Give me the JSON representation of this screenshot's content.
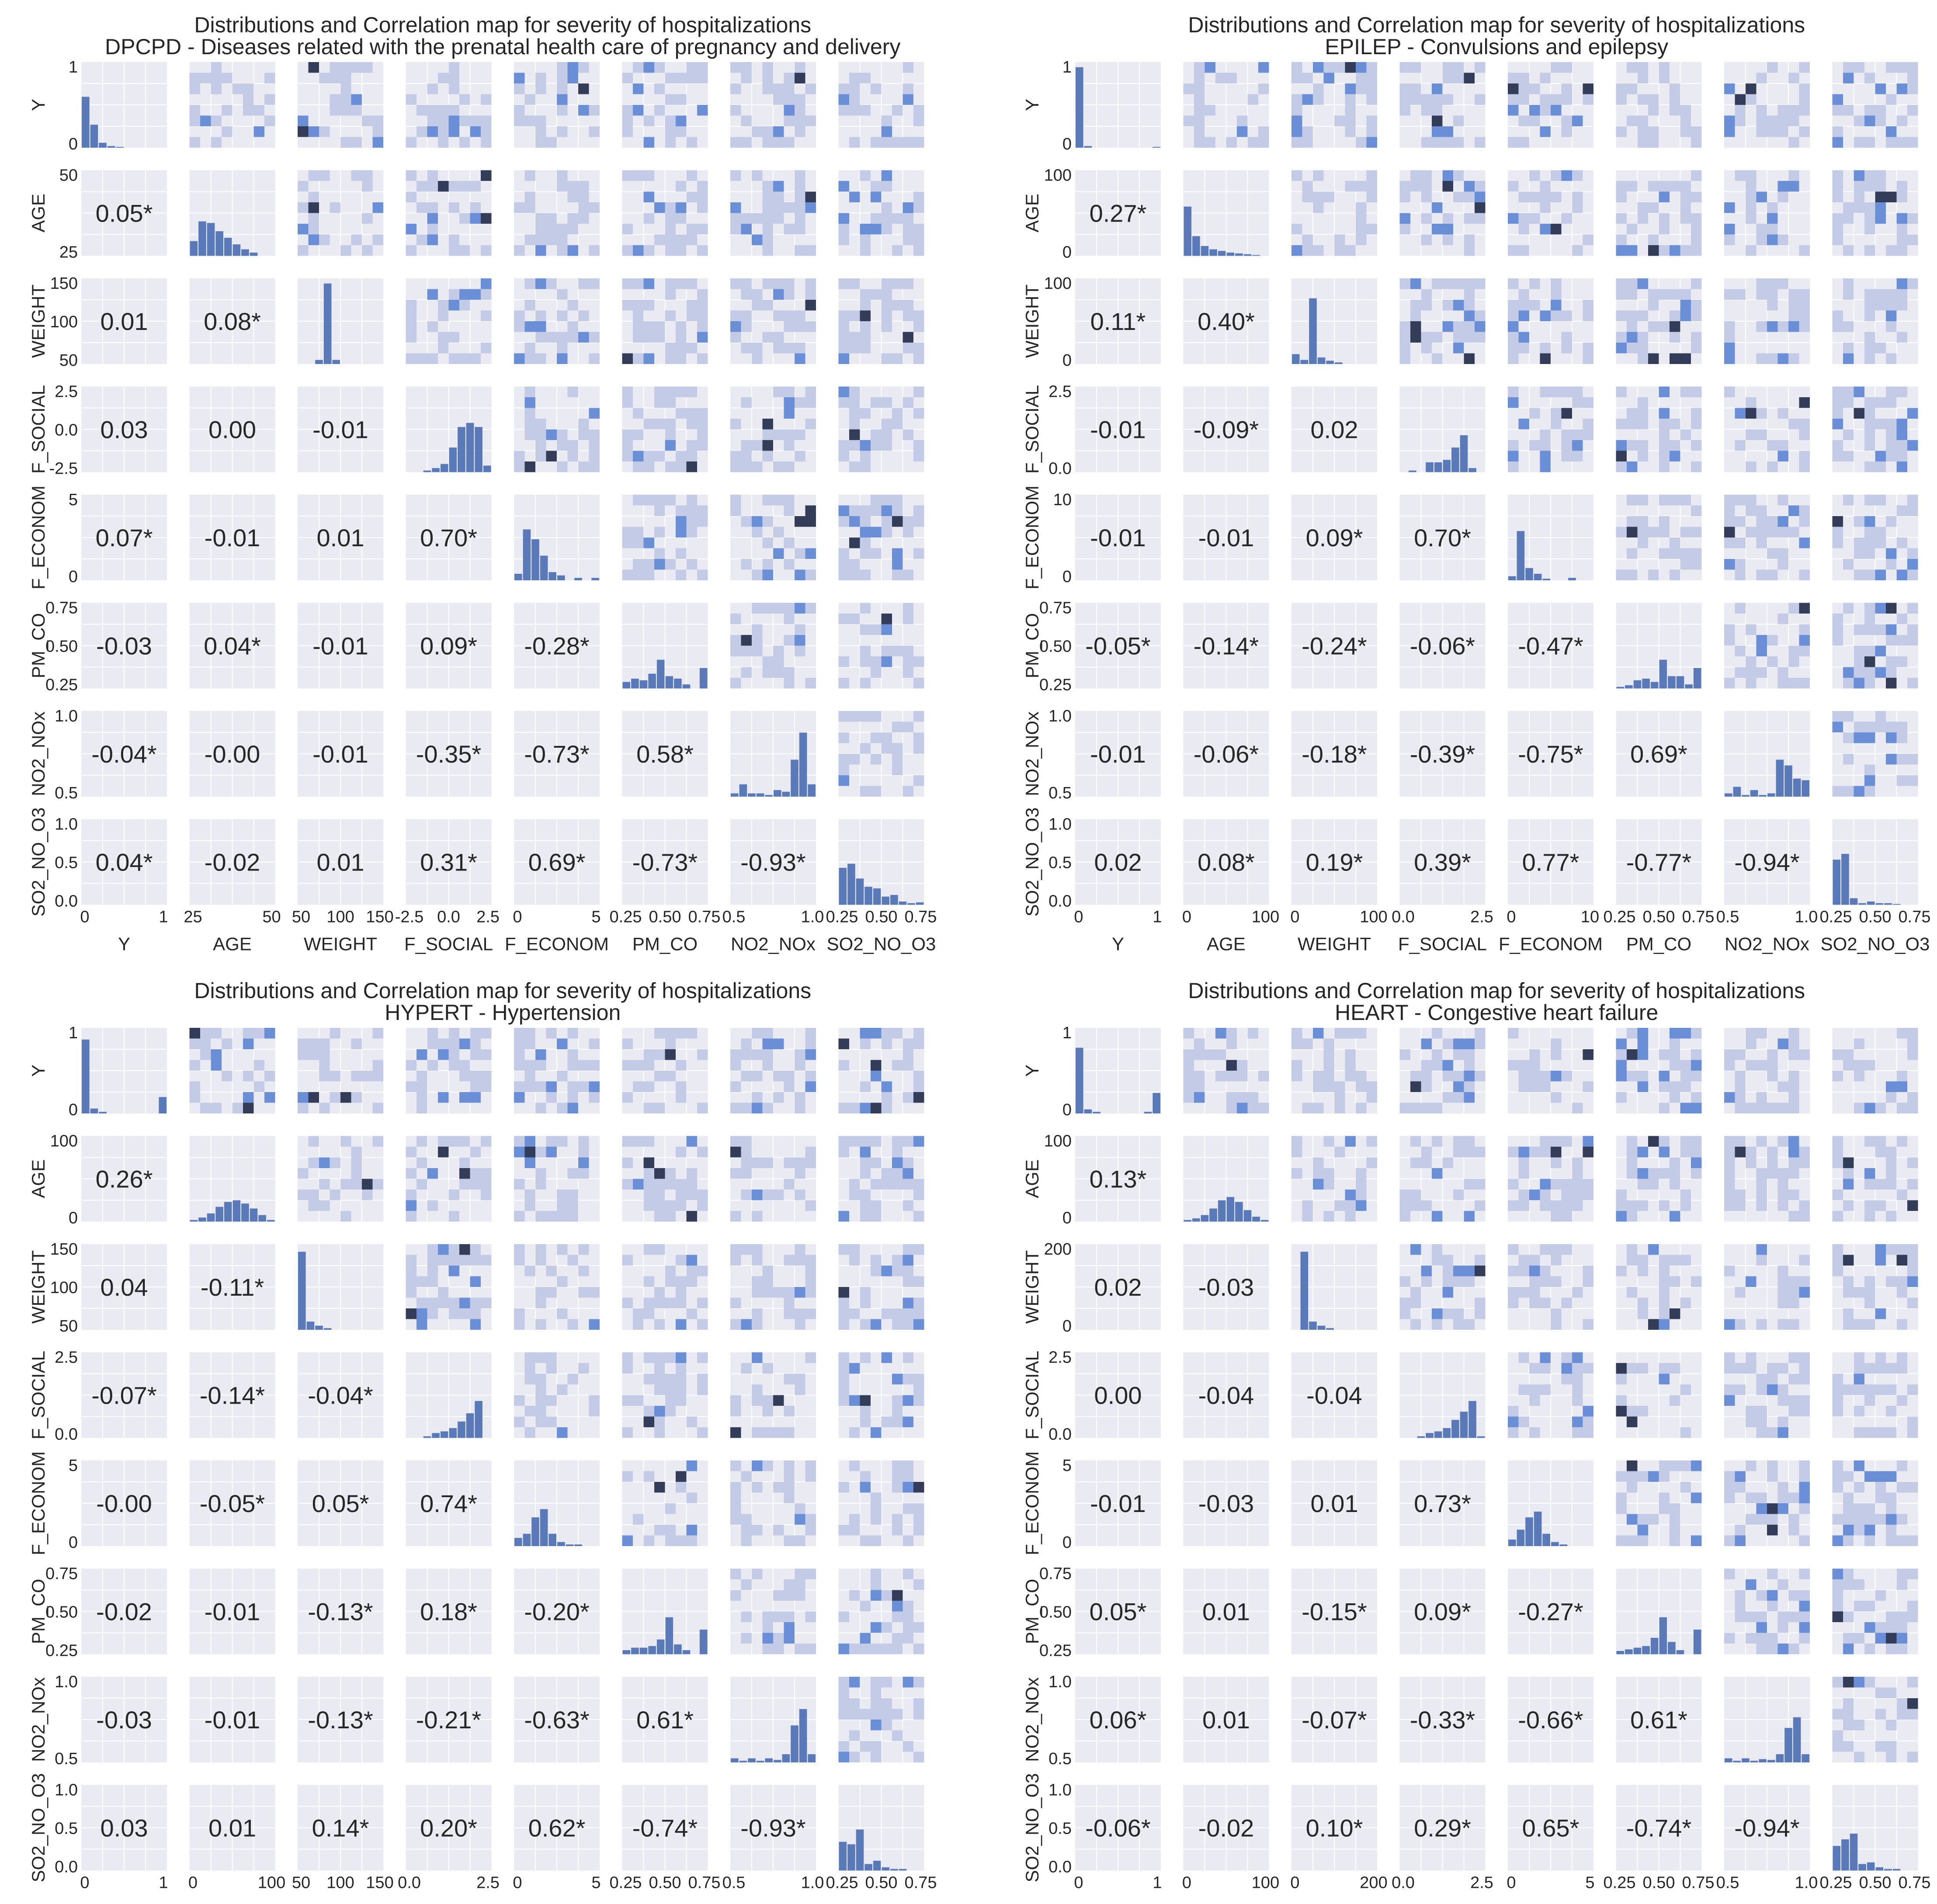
{
  "style": {
    "cell_bg": "#eaeaf2",
    "grid": "#ffffff",
    "text": "#262626",
    "hist_bar": "#5a79b8",
    "heat_light": "#c3cbe6",
    "heat_mid": "#6a8fd6",
    "heat_dark": "#333d5a"
  },
  "variables": [
    "Y",
    "AGE",
    "WEIGHT",
    "F_SOCIAL",
    "F_ECONOM",
    "PM_CO",
    "NO2_NOx",
    "SO2_NO_O3"
  ],
  "visible_x_labels": [
    "Y",
    "AGE",
    "WEIGHT",
    "F_SOCIAL",
    "F_ECONOM",
    "PM_CO",
    "NO2_NOx",
    "SO2_NO_O3"
  ],
  "chart_data": [
    {
      "type": "pairgrid",
      "title": "Distributions and Correlation map for severity of hospitalizations",
      "subtitle": "DPCPD - Diseases related with the prenatal health care of pregnancy and delivery",
      "correlations": [
        [
          "0.05*"
        ],
        [
          "0.01",
          "0.08*"
        ],
        [
          "0.03",
          "0.00",
          "-0.01"
        ],
        [
          "0.07*",
          "-0.01",
          "0.01",
          "0.70*"
        ],
        [
          "-0.03",
          "0.04*",
          "-0.01",
          "0.09*",
          "-0.28*"
        ],
        [
          "-0.04*",
          "-0.00",
          "-0.01",
          "-0.35*",
          "-0.73*",
          "0.58*"
        ],
        [
          "0.04*",
          "-0.02",
          "0.01",
          "0.31*",
          "0.69*",
          "-0.73*",
          "-0.93*"
        ]
      ],
      "y_ticks": [
        [
          "0",
          "1"
        ],
        [
          "25",
          "50"
        ],
        [
          "50",
          "100",
          "150"
        ],
        [
          "-2.5",
          "0.0",
          "2.5"
        ],
        [
          "0",
          "5"
        ],
        [
          "0.25",
          "0.50",
          "0.75"
        ],
        [
          "0.5",
          "1.0"
        ],
        [
          "0.0",
          "0.5",
          "1.0"
        ]
      ],
      "x_ticks": [
        [
          "0",
          "1"
        ],
        [
          "25",
          "50"
        ],
        [
          "50",
          "100",
          "150"
        ],
        [
          "-2.5",
          "0.0",
          "2.5"
        ],
        [
          "0",
          "5"
        ],
        [
          "0.25",
          "0.50",
          "0.75"
        ],
        [
          "0.5",
          "1.0"
        ],
        [
          "0.25",
          "0.50",
          "0.75"
        ]
      ],
      "histograms": [
        [
          0.62,
          0.28,
          0.06,
          0.02,
          0.01,
          0.0,
          0.0,
          0.0,
          0.0,
          0.0
        ],
        [
          0.18,
          0.42,
          0.4,
          0.3,
          0.22,
          0.14,
          0.08,
          0.04,
          0.0,
          0.0
        ],
        [
          0.0,
          0.0,
          0.05,
          0.98,
          0.05,
          0.0,
          0.0,
          0.0,
          0.0,
          0.0
        ],
        [
          0.0,
          0.0,
          0.02,
          0.05,
          0.1,
          0.3,
          0.55,
          0.6,
          0.55,
          0.08
        ],
        [
          0.08,
          0.62,
          0.5,
          0.3,
          0.1,
          0.06,
          0.0,
          0.03,
          0.0,
          0.03
        ],
        [
          0.08,
          0.12,
          0.1,
          0.18,
          0.35,
          0.15,
          0.12,
          0.05,
          0.0,
          0.25
        ],
        [
          0.04,
          0.15,
          0.04,
          0.04,
          0.02,
          0.08,
          0.06,
          0.45,
          0.78,
          0.15
        ],
        [
          0.45,
          0.5,
          0.32,
          0.22,
          0.2,
          0.1,
          0.12,
          0.04,
          0.02,
          0.03
        ]
      ]
    },
    {
      "type": "pairgrid",
      "title": "Distributions and Correlation map for severity of hospitalizations",
      "subtitle": "EPILEP - Convulsions and epilepsy",
      "correlations": [
        [
          "0.27*"
        ],
        [
          "0.11*",
          "0.40*"
        ],
        [
          "-0.01",
          "-0.09*",
          "0.02"
        ],
        [
          "-0.01",
          "-0.01",
          "0.09*",
          "0.70*"
        ],
        [
          "-0.05*",
          "-0.14*",
          "-0.24*",
          "-0.06*",
          "-0.47*"
        ],
        [
          "-0.01",
          "-0.06*",
          "-0.18*",
          "-0.39*",
          "-0.75*",
          "0.69*"
        ],
        [
          "0.02",
          "0.08*",
          "0.19*",
          "0.39*",
          "0.77*",
          "-0.77*",
          "-0.94*"
        ]
      ],
      "y_ticks": [
        [
          "0",
          "1"
        ],
        [
          "0",
          "100"
        ],
        [
          "0",
          "100"
        ],
        [
          "0.0",
          "2.5"
        ],
        [
          "0",
          "10"
        ],
        [
          "0.25",
          "0.50",
          "0.75"
        ],
        [
          "0.5",
          "1.0"
        ],
        [
          "0.0",
          "0.5",
          "1.0"
        ]
      ],
      "x_ticks": [
        [
          "0",
          "1"
        ],
        [
          "0",
          "100"
        ],
        [
          "0",
          "100"
        ],
        [
          "0.0",
          "2.5"
        ],
        [
          "0",
          "10"
        ],
        [
          "0.25",
          "0.50",
          "0.75"
        ],
        [
          "0.5",
          "1.0"
        ],
        [
          "0.25",
          "0.50",
          "0.75"
        ]
      ],
      "histograms": [
        [
          0.98,
          0.02,
          0.0,
          0.0,
          0.0,
          0.0,
          0.0,
          0.0,
          0.0,
          0.01
        ],
        [
          0.6,
          0.24,
          0.12,
          0.08,
          0.06,
          0.04,
          0.03,
          0.02,
          0.01,
          0.0
        ],
        [
          0.12,
          0.05,
          0.8,
          0.08,
          0.04,
          0.02,
          0.0,
          0.0,
          0.0,
          0.0
        ],
        [
          0.0,
          0.02,
          0.0,
          0.12,
          0.12,
          0.15,
          0.3,
          0.45,
          0.05,
          0.0
        ],
        [
          0.05,
          0.6,
          0.15,
          0.08,
          0.02,
          0.0,
          0.0,
          0.03,
          0.0,
          0.0
        ],
        [
          0.02,
          0.04,
          0.1,
          0.12,
          0.08,
          0.35,
          0.15,
          0.15,
          0.05,
          0.25
        ],
        [
          0.04,
          0.12,
          0.02,
          0.08,
          0.02,
          0.04,
          0.45,
          0.38,
          0.22,
          0.2
        ],
        [
          0.55,
          0.62,
          0.08,
          0.02,
          0.04,
          0.02,
          0.02,
          0.01,
          0.0,
          0.0
        ]
      ]
    },
    {
      "type": "pairgrid",
      "title": "Distributions and Correlation map for severity of hospitalizations",
      "subtitle": "HYPERT - Hypertension",
      "correlations": [
        [
          "0.26*"
        ],
        [
          "0.04",
          "-0.11*"
        ],
        [
          "-0.07*",
          "-0.14*",
          "-0.04*"
        ],
        [
          "-0.00",
          "-0.05*",
          "0.05*",
          "0.74*"
        ],
        [
          "-0.02",
          "-0.01",
          "-0.13*",
          "0.18*",
          "-0.20*"
        ],
        [
          "-0.03",
          "-0.01",
          "-0.13*",
          "-0.21*",
          "-0.63*",
          "0.61*"
        ],
        [
          "0.03",
          "0.01",
          "0.14*",
          "0.20*",
          "0.62*",
          "-0.74*",
          "-0.93*"
        ]
      ],
      "y_ticks": [
        [
          "0",
          "1"
        ],
        [
          "0",
          "100"
        ],
        [
          "50",
          "100",
          "150"
        ],
        [
          "0.0",
          "2.5"
        ],
        [
          "0",
          "5"
        ],
        [
          "0.25",
          "0.50",
          "0.75"
        ],
        [
          "0.5",
          "1.0"
        ],
        [
          "0.0",
          "0.5",
          "1.0"
        ]
      ],
      "x_ticks": [
        [
          "0",
          "1"
        ],
        [
          "0",
          "100"
        ],
        [
          "50",
          "100",
          "150"
        ],
        [
          "0.0",
          "2.5"
        ],
        [
          "0",
          "5"
        ],
        [
          "0.25",
          "0.50",
          "0.75"
        ],
        [
          "0.5",
          "1.0"
        ],
        [
          "0.25",
          "0.50",
          "0.75"
        ]
      ],
      "histograms": [
        [
          0.9,
          0.06,
          0.02,
          0.0,
          0.0,
          0.0,
          0.0,
          0.0,
          0.0,
          0.2
        ],
        [
          0.02,
          0.05,
          0.1,
          0.18,
          0.24,
          0.26,
          0.22,
          0.16,
          0.08,
          0.02
        ],
        [
          0.95,
          0.1,
          0.05,
          0.02,
          0.0,
          0.0,
          0.0,
          0.0,
          0.0,
          0.0
        ],
        [
          0.0,
          0.0,
          0.02,
          0.06,
          0.08,
          0.12,
          0.2,
          0.3,
          0.45,
          0.0
        ],
        [
          0.1,
          0.15,
          0.35,
          0.45,
          0.15,
          0.05,
          0.02,
          0.02,
          0.0,
          0.0
        ],
        [
          0.05,
          0.08,
          0.08,
          0.1,
          0.18,
          0.45,
          0.12,
          0.05,
          0.0,
          0.3
        ],
        [
          0.05,
          0.02,
          0.05,
          0.02,
          0.05,
          0.03,
          0.1,
          0.45,
          0.65,
          0.1
        ],
        [
          0.35,
          0.32,
          0.5,
          0.08,
          0.12,
          0.04,
          0.02,
          0.02,
          0.0,
          0.0
        ]
      ]
    },
    {
      "type": "pairgrid",
      "title": "Distributions and Correlation map for severity of hospitalizations",
      "subtitle": "HEART - Congestive heart failure",
      "correlations": [
        [
          "0.13*"
        ],
        [
          "0.02",
          "-0.03"
        ],
        [
          "0.00",
          "-0.04",
          "-0.04"
        ],
        [
          "-0.01",
          "-0.03",
          "0.01",
          "0.73*"
        ],
        [
          "0.05*",
          "0.01",
          "-0.15*",
          "0.09*",
          "-0.27*"
        ],
        [
          "0.06*",
          "0.01",
          "-0.07*",
          "-0.33*",
          "-0.66*",
          "0.61*"
        ],
        [
          "-0.06*",
          "-0.02",
          "0.10*",
          "0.29*",
          "0.65*",
          "-0.74*",
          "-0.94*"
        ]
      ],
      "y_ticks": [
        [
          "0",
          "1"
        ],
        [
          "0",
          "100"
        ],
        [
          "0",
          "200"
        ],
        [
          "0.0",
          "2.5"
        ],
        [
          "0",
          "5"
        ],
        [
          "0.25",
          "0.50",
          "0.75"
        ],
        [
          "0.5",
          "1.0"
        ],
        [
          "0.0",
          "0.5",
          "1.0"
        ]
      ],
      "x_ticks": [
        [
          "0",
          "1"
        ],
        [
          "0",
          "100"
        ],
        [
          "0",
          "200"
        ],
        [
          "0.0",
          "2.5"
        ],
        [
          "0",
          "5"
        ],
        [
          "0.25",
          "0.50",
          "0.75"
        ],
        [
          "0.5",
          "1.0"
        ],
        [
          "0.25",
          "0.50",
          "0.75"
        ]
      ],
      "histograms": [
        [
          0.8,
          0.05,
          0.02,
          0.0,
          0.0,
          0.0,
          0.0,
          0.0,
          0.02,
          0.25
        ],
        [
          0.02,
          0.04,
          0.08,
          0.16,
          0.26,
          0.3,
          0.24,
          0.14,
          0.06,
          0.02
        ],
        [
          0.0,
          0.95,
          0.1,
          0.05,
          0.02,
          0.0,
          0.0,
          0.0,
          0.0,
          0.0
        ],
        [
          0.0,
          0.0,
          0.02,
          0.06,
          0.08,
          0.12,
          0.22,
          0.32,
          0.45,
          0.02
        ],
        [
          0.08,
          0.2,
          0.35,
          0.42,
          0.15,
          0.05,
          0.02,
          0.0,
          0.0,
          0.0
        ],
        [
          0.04,
          0.06,
          0.08,
          0.1,
          0.2,
          0.45,
          0.15,
          0.05,
          0.0,
          0.3
        ],
        [
          0.05,
          0.02,
          0.05,
          0.02,
          0.04,
          0.03,
          0.1,
          0.42,
          0.55,
          0.1
        ],
        [
          0.3,
          0.38,
          0.45,
          0.08,
          0.1,
          0.04,
          0.02,
          0.02,
          0.0,
          0.0
        ]
      ]
    }
  ]
}
